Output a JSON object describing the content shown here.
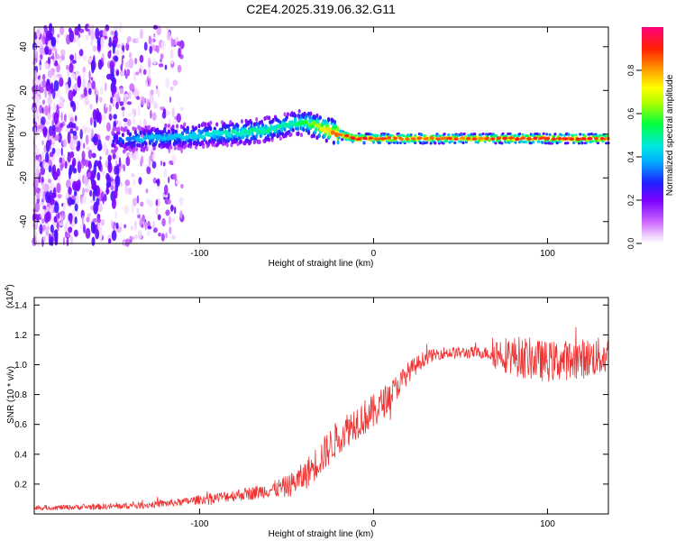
{
  "title": "C2E4.2025.319.06.32.G11",
  "chart_data": [
    {
      "type": "heatmap",
      "xlabel": "Height of straight line (km)",
      "ylabel": "Frequency (Hz)",
      "xlim": [
        -195,
        135
      ],
      "ylim": [
        -50,
        49
      ],
      "xticks": [
        -100,
        0,
        100
      ],
      "xtick_labels": [
        "-100",
        "0",
        "100"
      ],
      "yticks": [
        -40,
        -20,
        0,
        20,
        40
      ],
      "ytick_labels": [
        "-40",
        "-20",
        "0",
        "20",
        "40"
      ],
      "colorbar": {
        "label": "Normalized spectral amplitude",
        "range": [
          0,
          1
        ],
        "ticks": [
          0.0,
          0.2,
          0.4,
          0.6,
          0.8
        ],
        "tick_labels": [
          "0.0",
          "0.2",
          "0.4",
          "0.6",
          "0.8"
        ]
      },
      "ridge": {
        "x": [
          -150,
          -130,
          -110,
          -90,
          -70,
          -55,
          -45,
          -38,
          -30,
          -20,
          -10,
          0,
          20,
          40,
          60,
          80,
          100,
          135
        ],
        "freq": [
          -3,
          -2,
          -1,
          0,
          1,
          3,
          5,
          5,
          3,
          0,
          -2,
          -2,
          -2,
          -2,
          -2,
          -2,
          -2,
          -2
        ],
        "amplitude": [
          0.3,
          0.4,
          0.42,
          0.45,
          0.5,
          0.48,
          0.5,
          0.55,
          0.7,
          0.85,
          0.9,
          0.9,
          0.85,
          0.85,
          0.85,
          0.9,
          0.9,
          0.9
        ]
      },
      "noise_region_x": [
        -195,
        -110
      ]
    },
    {
      "type": "line",
      "series_color": "#ee3333",
      "xlabel": "Height of straight line (km)",
      "ylabel": "SNR (10 * v/v)",
      "multiplier": "(x10",
      "multiplier_exp": "4",
      "multiplier_close": ")",
      "xlim": [
        -195,
        135
      ],
      "ylim": [
        0,
        1.45
      ],
      "xticks": [
        -100,
        0,
        100
      ],
      "xtick_labels": [
        "-100",
        "0",
        "100"
      ],
      "yticks": [
        0.2,
        0.4,
        0.6,
        0.8,
        1.0,
        1.2,
        1.4
      ],
      "ytick_labels": [
        "0.2",
        "0.4",
        "0.6",
        "0.8",
        "1.0",
        "1.2",
        "1.4"
      ],
      "trend": {
        "x": [
          -195,
          -150,
          -130,
          -110,
          -90,
          -70,
          -50,
          -40,
          -30,
          -20,
          -10,
          0,
          10,
          20,
          30,
          40,
          60,
          70,
          80,
          100,
          120,
          135
        ],
        "y": [
          0.04,
          0.05,
          0.06,
          0.08,
          0.11,
          0.14,
          0.18,
          0.25,
          0.38,
          0.52,
          0.62,
          0.68,
          0.8,
          0.95,
          1.05,
          1.08,
          1.08,
          1.08,
          1.06,
          1.02,
          1.04,
          1.06
        ]
      },
      "noise_amplitude": {
        "x": [
          -195,
          -110,
          -60,
          -30,
          0,
          20,
          35,
          65,
          70,
          85,
          135
        ],
        "a": [
          0.015,
          0.025,
          0.05,
          0.12,
          0.12,
          0.07,
          0.04,
          0.04,
          0.11,
          0.14,
          0.13
        ]
      }
    }
  ]
}
